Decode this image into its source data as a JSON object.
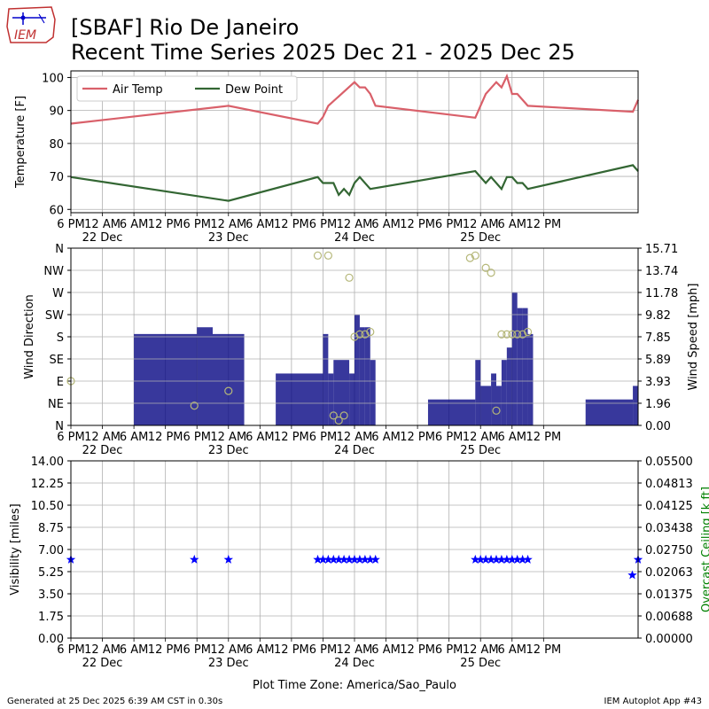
{
  "page": {
    "title_line1": "[SBAF] Rio De Janeiro",
    "title_line2": "Recent Time Series 2025 Dec 21 - 2025 Dec 25",
    "logo_text": "IEM",
    "footer_left": "Generated at 25 Dec 2025 6:39 AM CST in 0.30s",
    "footer_right": "IEM Autoplot App #43",
    "timezone_label": "Plot Time Zone: America/Sao_Paulo"
  },
  "colors": {
    "air_temp": "#d9606a",
    "dew_point": "#336633",
    "wind_bar": "#000080",
    "wind_dir": "#b5b779",
    "visibility": "#0000ff",
    "ceiling_axis": "#008000",
    "grid": "#b0b0b0"
  },
  "chart_data": [
    {
      "type": "line",
      "panel": "temperature",
      "ylabel": "Temperature [F]",
      "ylim": [
        59,
        102
      ],
      "yticks": [
        60,
        70,
        80,
        90,
        100
      ],
      "xlim_hours": [
        0,
        108
      ],
      "x_unit": "hours since 21 Dec 6 PM",
      "legend": "top-left",
      "series": [
        {
          "name": "Air Temp",
          "color_key": "air_temp",
          "points": [
            [
              0,
              86
            ],
            [
              30,
              91.4
            ],
            [
              47,
              86
            ],
            [
              48,
              88
            ],
            [
              49,
              91.4
            ],
            [
              54,
              98.6
            ],
            [
              55,
              97
            ],
            [
              56,
              97
            ],
            [
              57,
              95
            ],
            [
              58,
              91.4
            ],
            [
              77,
              87.8
            ],
            [
              79,
              95
            ],
            [
              81,
              98.6
            ],
            [
              82,
              97
            ],
            [
              83,
              100.4
            ],
            [
              84,
              95
            ],
            [
              85,
              95
            ],
            [
              87,
              91.4
            ],
            [
              107,
              89.6
            ],
            [
              108,
              93.2
            ]
          ]
        },
        {
          "name": "Dew Point",
          "color_key": "dew_point",
          "points": [
            [
              0,
              69.8
            ],
            [
              30,
              62.6
            ],
            [
              47,
              69.8
            ],
            [
              48,
              68
            ],
            [
              50,
              68
            ],
            [
              51,
              64.4
            ],
            [
              52,
              66.2
            ],
            [
              53,
              64.4
            ],
            [
              54,
              68
            ],
            [
              55,
              69.8
            ],
            [
              57,
              66.2
            ],
            [
              77,
              71.6
            ],
            [
              79,
              68
            ],
            [
              80,
              69.8
            ],
            [
              82,
              66.2
            ],
            [
              83,
              69.8
            ],
            [
              84,
              69.8
            ],
            [
              85,
              68
            ],
            [
              86,
              68
            ],
            [
              87,
              66.2
            ],
            [
              107,
              73.4
            ],
            [
              108,
              71.6
            ]
          ]
        }
      ]
    },
    {
      "type": "bar",
      "panel": "wind",
      "ylabel_left": "Wind Direction",
      "ylabel_right": "Wind Speed [mph]",
      "dir_ticks": [
        "N",
        "NE",
        "E",
        "SE",
        "S",
        "SW",
        "W",
        "NW",
        "N"
      ],
      "dir_values": [
        0,
        45,
        90,
        135,
        180,
        225,
        270,
        315,
        360
      ],
      "speed_ticks": [
        "0.00",
        "1.96",
        "3.93",
        "5.89",
        "7.85",
        "9.82",
        "11.78",
        "13.74",
        "15.71"
      ],
      "speed_lim": [
        0,
        15.71
      ],
      "bars": [
        [
          12,
          24,
          8.1
        ],
        [
          24,
          27,
          8.7
        ],
        [
          27,
          33,
          8.1
        ],
        [
          39,
          48,
          4.6
        ],
        [
          48,
          49,
          8.1
        ],
        [
          49,
          50,
          4.6
        ],
        [
          50,
          53,
          5.8
        ],
        [
          53,
          54,
          4.6
        ],
        [
          54,
          55,
          9.8
        ],
        [
          55,
          56,
          8.7
        ],
        [
          56,
          57,
          8.7
        ],
        [
          57,
          58,
          5.8
        ],
        [
          68,
          77,
          2.3
        ],
        [
          77,
          78,
          5.8
        ],
        [
          78,
          80,
          3.5
        ],
        [
          80,
          81,
          4.6
        ],
        [
          81,
          82,
          3.5
        ],
        [
          82,
          83,
          5.8
        ],
        [
          83,
          84,
          6.9
        ],
        [
          84,
          85,
          11.8
        ],
        [
          85,
          86,
          10.4
        ],
        [
          86,
          87,
          10.4
        ],
        [
          87,
          88,
          8.1
        ],
        [
          98,
          107,
          2.3
        ],
        [
          107,
          108,
          3.5
        ]
      ],
      "directions": [
        [
          0,
          90
        ],
        [
          23.5,
          40
        ],
        [
          30,
          70
        ],
        [
          47,
          345
        ],
        [
          49,
          345
        ],
        [
          50,
          20
        ],
        [
          51,
          10
        ],
        [
          52,
          20
        ],
        [
          53,
          300
        ],
        [
          54,
          180
        ],
        [
          55,
          185
        ],
        [
          56,
          185
        ],
        [
          57,
          190
        ],
        [
          76,
          340
        ],
        [
          77,
          345
        ],
        [
          79,
          320
        ],
        [
          80,
          310
        ],
        [
          81,
          30
        ],
        [
          82,
          185
        ],
        [
          83,
          185
        ],
        [
          84,
          185
        ],
        [
          85,
          185
        ],
        [
          86,
          185
        ],
        [
          87,
          190
        ]
      ]
    },
    {
      "type": "scatter",
      "panel": "visibility",
      "ylabel_left": "Visibility [miles]",
      "ylabel_right": "Overcast Ceiling [k ft]",
      "vis_ticks": [
        "0.00",
        "1.75",
        "3.50",
        "5.25",
        "7.00",
        "8.75",
        "10.50",
        "12.25",
        "14.00"
      ],
      "vis_lim": [
        0,
        14
      ],
      "ceil_ticks": [
        "0.00000",
        "0.00688",
        "0.01375",
        "0.02063",
        "0.02750",
        "0.03438",
        "0.04125",
        "0.04813",
        "0.05500"
      ],
      "points": [
        [
          0,
          6.2
        ],
        [
          23.5,
          6.2
        ],
        [
          30,
          6.2
        ],
        [
          47,
          6.2
        ],
        [
          48,
          6.2
        ],
        [
          49,
          6.2
        ],
        [
          50,
          6.2
        ],
        [
          51,
          6.2
        ],
        [
          52,
          6.2
        ],
        [
          53,
          6.2
        ],
        [
          54,
          6.2
        ],
        [
          55,
          6.2
        ],
        [
          56,
          6.2
        ],
        [
          57,
          6.2
        ],
        [
          58,
          6.2
        ],
        [
          77,
          6.2
        ],
        [
          78,
          6.2
        ],
        [
          79,
          6.2
        ],
        [
          80,
          6.2
        ],
        [
          81,
          6.2
        ],
        [
          82,
          6.2
        ],
        [
          83,
          6.2
        ],
        [
          84,
          6.2
        ],
        [
          85,
          6.2
        ],
        [
          86,
          6.2
        ],
        [
          87,
          6.2
        ],
        [
          106.9,
          4.97
        ],
        [
          108,
          6.2
        ]
      ]
    }
  ],
  "x_axis": {
    "ticks": [
      {
        "h": 0,
        "label": "6 PM"
      },
      {
        "h": 6,
        "label": "12 AM"
      },
      {
        "h": 12,
        "label": "6 AM"
      },
      {
        "h": 18,
        "label": "12 PM"
      },
      {
        "h": 24,
        "label": "6 PM"
      },
      {
        "h": 30,
        "label": "12 AM"
      },
      {
        "h": 36,
        "label": "6 AM"
      },
      {
        "h": 42,
        "label": "12 PM"
      },
      {
        "h": 48,
        "label": "6 PM"
      },
      {
        "h": 54,
        "label": "12 AM"
      },
      {
        "h": 60,
        "label": "6 AM"
      },
      {
        "h": 66,
        "label": "12 PM"
      },
      {
        "h": 72,
        "label": "6 PM"
      },
      {
        "h": 78,
        "label": "12 AM"
      },
      {
        "h": 84,
        "label": "6 AM"
      },
      {
        "h": 90,
        "label": "12 PM"
      }
    ],
    "dates": [
      {
        "h": 6,
        "label": "22 Dec"
      },
      {
        "h": 30,
        "label": "23 Dec"
      },
      {
        "h": 54,
        "label": "24 Dec"
      },
      {
        "h": 78,
        "label": "25 Dec"
      }
    ]
  }
}
